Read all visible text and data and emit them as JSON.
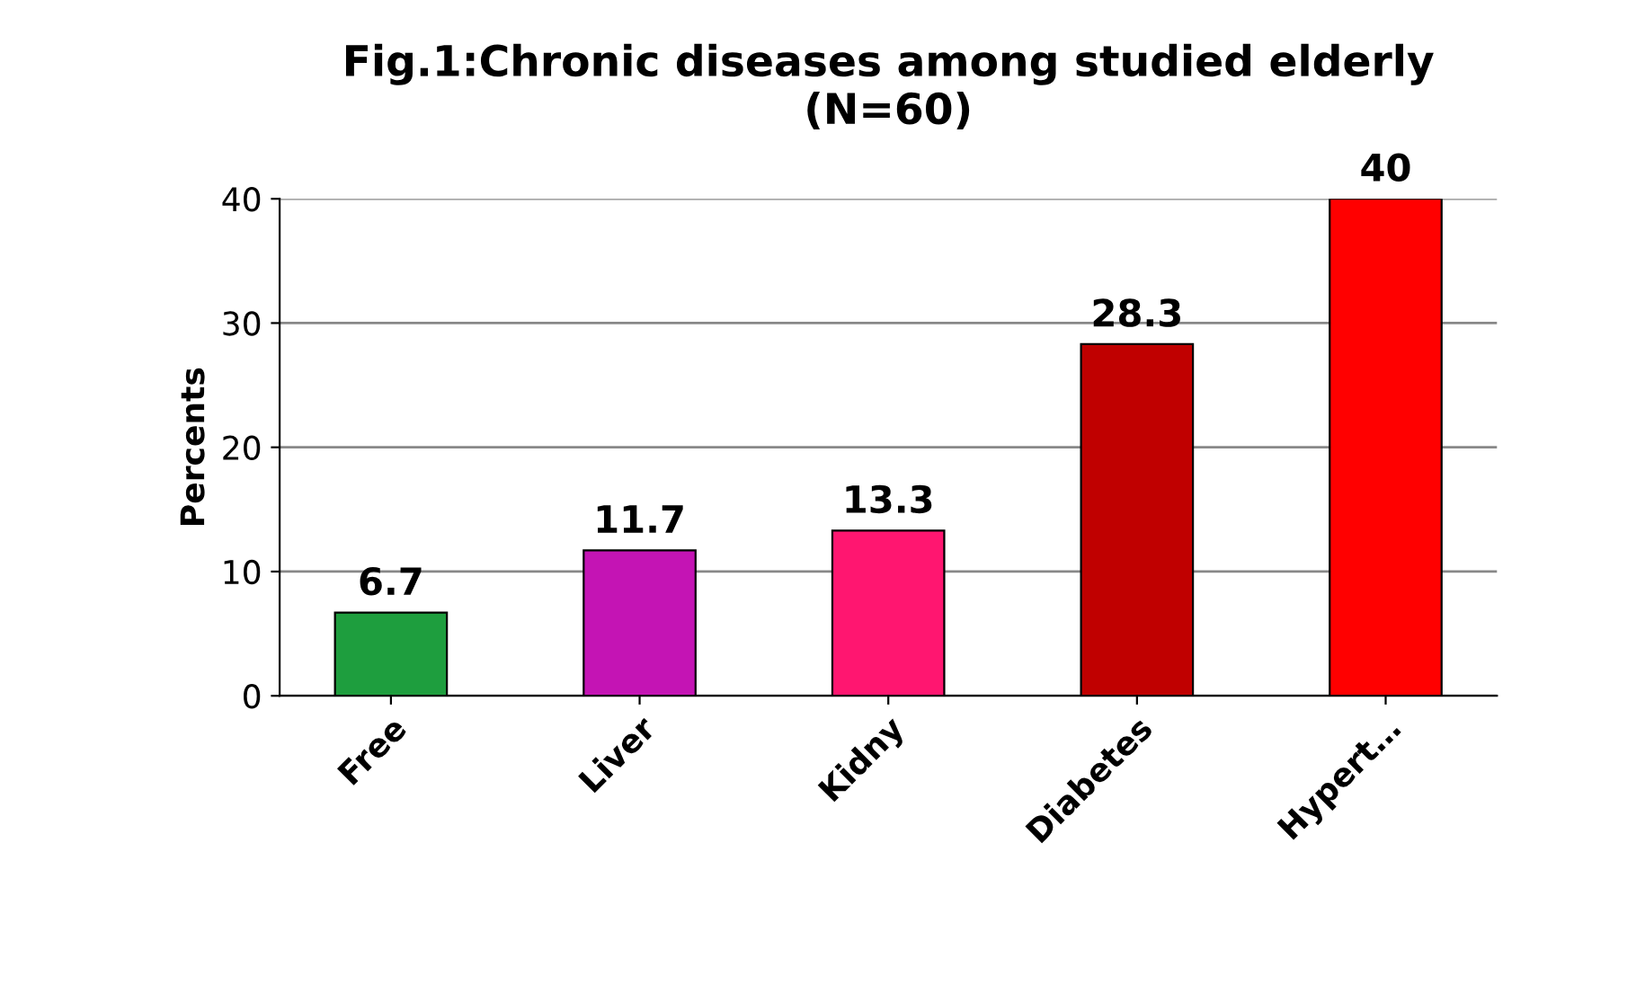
{
  "chart_data": {
    "type": "bar",
    "title": "Fig.1:Chronic diseases among studied elderly\n(N=60)",
    "ylabel": "Percents",
    "categories": [
      "Free",
      "Liver",
      "Kidny",
      "Diabetes",
      "Hypert…"
    ],
    "values": [
      6.7,
      11.7,
      13.3,
      28.3,
      40
    ],
    "colors": [
      "#1e9e3e",
      "#c414b4",
      "#ff1670",
      "#c00000",
      "#ff0000"
    ],
    "ylim": [
      0,
      40
    ],
    "yticks": [
      0,
      10,
      20,
      30,
      40
    ],
    "grid": "y",
    "data_labels": true
  }
}
